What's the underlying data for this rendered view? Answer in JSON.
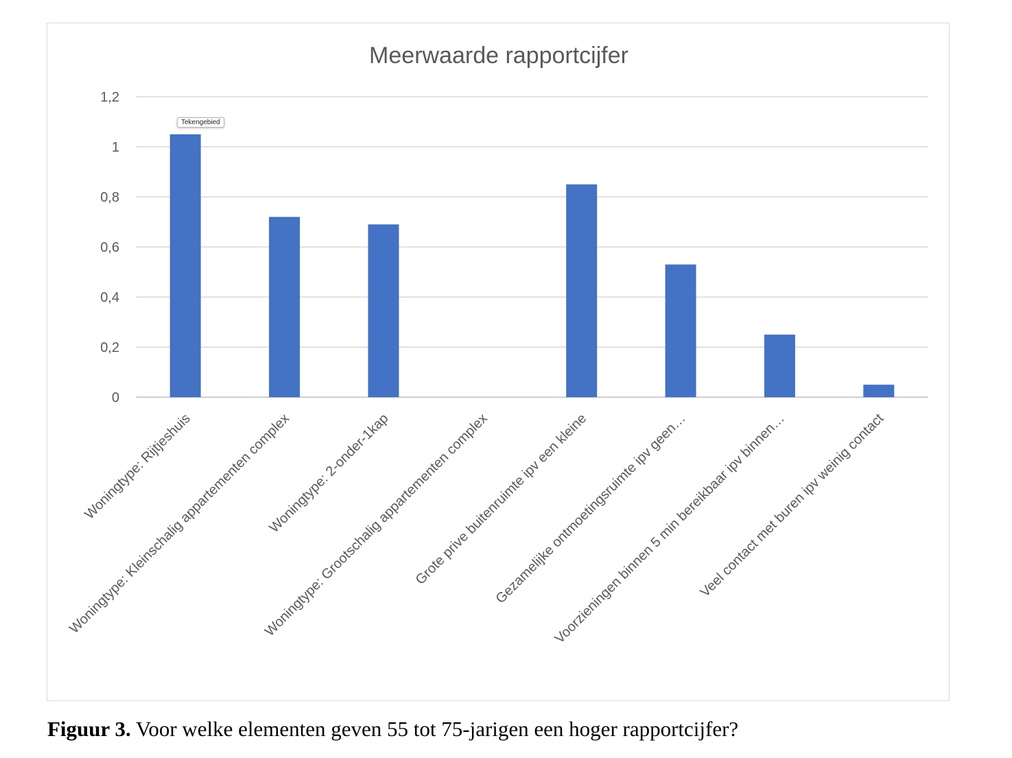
{
  "chart_data": {
    "type": "bar",
    "title": "Meerwaarde rapportcijfer",
    "xlabel": "",
    "ylabel": "",
    "ylim": [
      0,
      1.2
    ],
    "yticks": [
      "0",
      "0,2",
      "0,4",
      "0,6",
      "0,8",
      "1",
      "1,2"
    ],
    "grid": true,
    "bar_color": "#4472c4",
    "categories": [
      "Woningtype: Rijtjeshuis",
      "Woningtype: Kleinschalig appartementen complex",
      "Woningtype: 2-onder-1kap",
      "Woningtype: Grootschalig appartementen complex",
      "Grote prive buitenruimte ipv een kleine",
      "Gezamelijke ontmoetingsruimte ipv geen…",
      "Voorzieningen binnen 5 min bereikbaar ipv binnen…",
      "Veel contact met buren ipv weinig contact"
    ],
    "values": [
      1.05,
      0.72,
      0.69,
      0.0,
      0.85,
      0.53,
      0.25,
      0.05
    ]
  },
  "tooltip": {
    "text": "Tekengebied"
  },
  "caption": {
    "label": "Figuur 3.",
    "text": " Voor welke elementen geven 55 tot 75-jarigen een hoger rapportcijfer?"
  }
}
